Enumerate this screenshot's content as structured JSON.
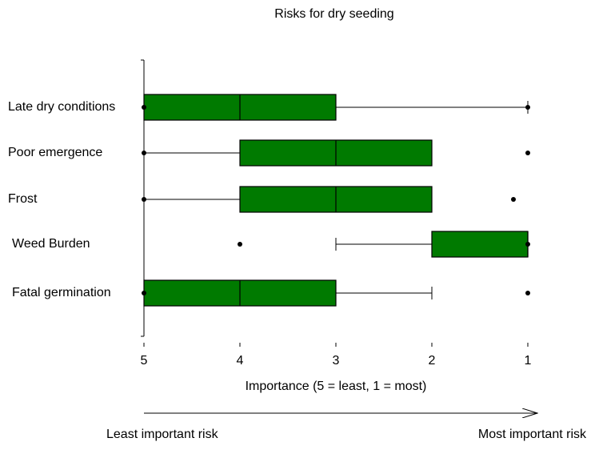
{
  "chart_data": {
    "type": "boxplot",
    "orientation": "horizontal",
    "title": "Risks for dry seeding",
    "x_label": "Importance (5 = least, 1 = most)",
    "annotations": [
      "Least important risk",
      "Most important risk"
    ],
    "xlim": [
      5,
      1
    ],
    "xticks": [
      5,
      4,
      3,
      2,
      1
    ],
    "color": "#007a00",
    "boxes": [
      {
        "category": "Late dry conditions",
        "whisker_low": 1,
        "box_low": 3,
        "median": 4,
        "box_high": 5,
        "whisker_high": 5,
        "points": [
          5,
          1
        ]
      },
      {
        "category": "Poor emergence",
        "whisker_low": 2,
        "box_low": 2,
        "median": 3,
        "box_high": 4,
        "whisker_high": 5,
        "points": [
          5,
          1
        ]
      },
      {
        "category": "Frost",
        "whisker_low": 2,
        "box_low": 2,
        "median": 3,
        "box_high": 4,
        "whisker_high": 5,
        "points": [
          5,
          1.15
        ]
      },
      {
        "category": "Weed Burden",
        "whisker_low": 1,
        "box_low": 1,
        "median": 1,
        "box_high": 2,
        "whisker_high": 3,
        "points": [
          4,
          1
        ]
      },
      {
        "category": "Fatal germination",
        "whisker_low": 2,
        "box_low": 3,
        "median": 4,
        "box_high": 5,
        "whisker_high": 5,
        "points": [
          5,
          1
        ]
      }
    ]
  }
}
